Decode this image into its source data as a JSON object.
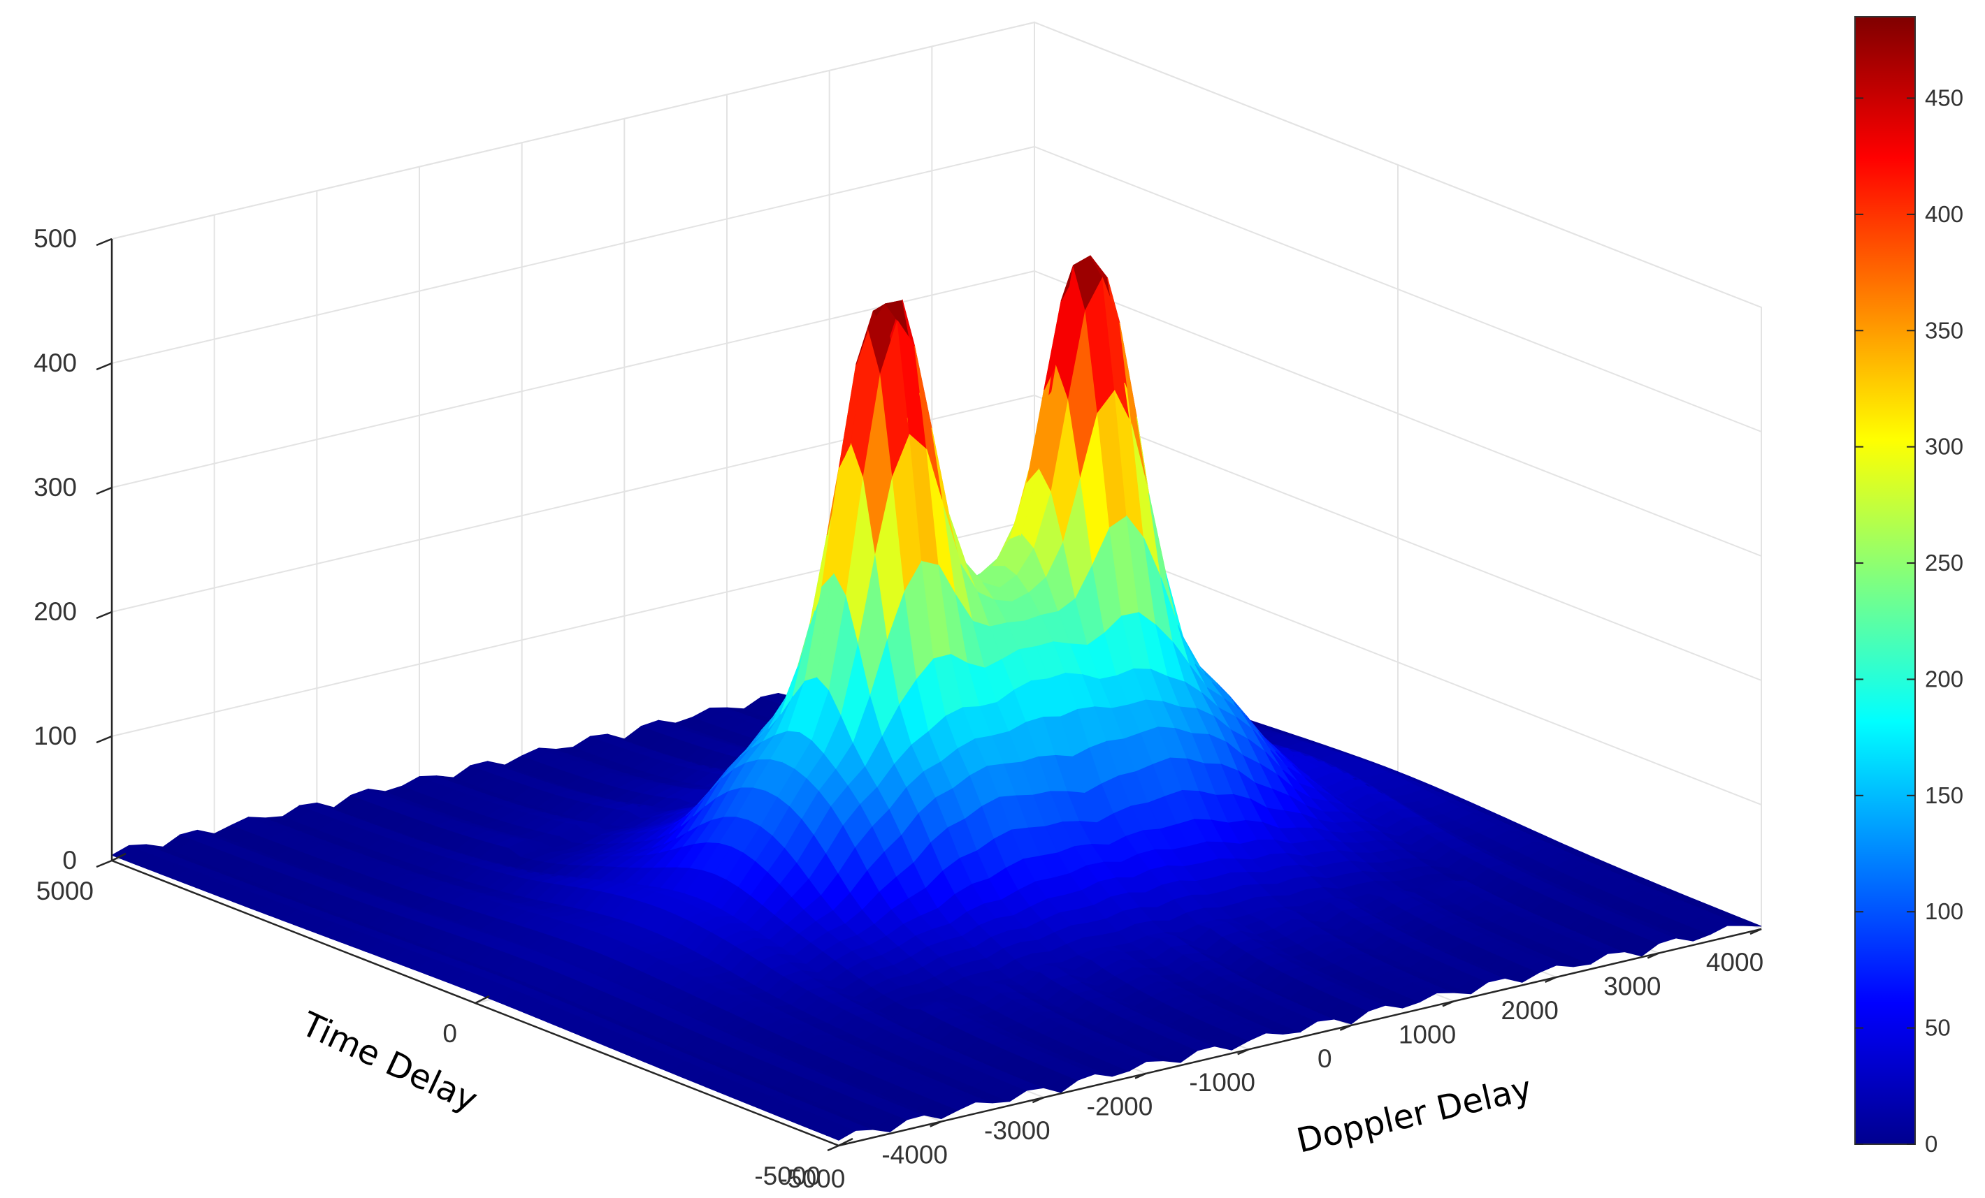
{
  "chart_data": {
    "type": "surface",
    "xlabel": "Doppler Delay",
    "ylabel": "Time Delay",
    "zlabel": "",
    "xlim": [
      -5000,
      4000
    ],
    "ylim": [
      -5000,
      5000
    ],
    "zlim": [
      0,
      500
    ],
    "x_ticks": [
      "-5000",
      "-4000",
      "-3000",
      "-2000",
      "-1000",
      "0",
      "1000",
      "2000",
      "3000",
      "4000"
    ],
    "y_ticks": [
      "-5000",
      "0",
      "5000"
    ],
    "z_ticks": [
      "0",
      "100",
      "200",
      "300",
      "400",
      "500"
    ],
    "peaks": [
      {
        "x": -1000,
        "y": 0,
        "z": 485
      },
      {
        "x": 1000,
        "y": 0,
        "z": 480
      }
    ],
    "colormap": "jet",
    "grid": true,
    "colorbar": {
      "position": "right",
      "range": [
        0,
        485
      ],
      "ticks": [
        "0",
        "50",
        "100",
        "150",
        "200",
        "250",
        "300",
        "350",
        "400",
        "450"
      ]
    }
  }
}
